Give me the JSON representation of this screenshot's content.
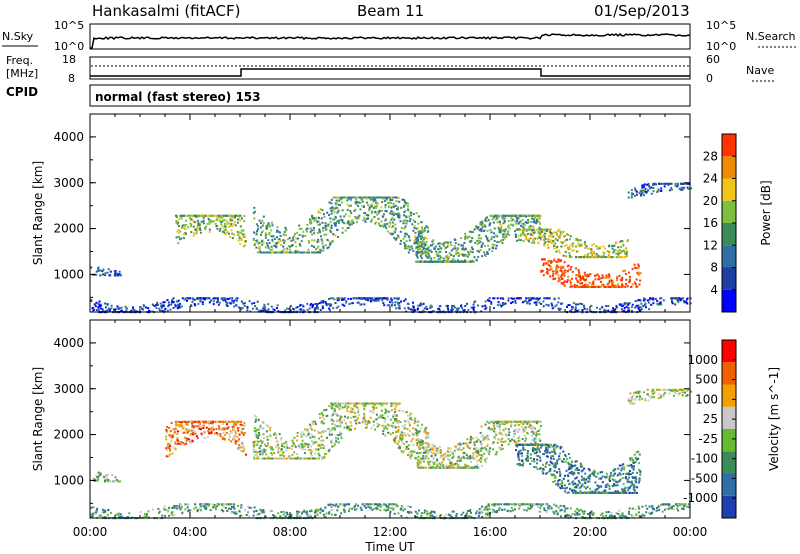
{
  "header": {
    "station": "Hankasalmi (fitACF)",
    "beam": "Beam 11",
    "date": "01/Sep/2013"
  },
  "noise_panel": {
    "left_label": "N.Sky",
    "right_label": "N.Search",
    "left_ticks": [
      "10^5",
      "10^0"
    ],
    "right_ticks": [
      "10^5",
      "10^0"
    ]
  },
  "freq_panel": {
    "left_label_1": "Freq.",
    "left_label_2": "[MHz]",
    "left_ticks": [
      "18",
      "8"
    ],
    "right_label": "Nave",
    "right_ticks": [
      "60",
      "0"
    ],
    "cpid_label": "CPID"
  },
  "cpid_text": "normal (fast stereo) 153",
  "chart_data": [
    {
      "type": "heatmap",
      "name": "power",
      "ylabel": "Slant Range [km]",
      "ylim": [
        180,
        4500
      ],
      "yticks": [
        "1000",
        "2000",
        "3000",
        "4000"
      ],
      "xlim": [
        "00:00",
        "00:00"
      ],
      "colorbar": {
        "label": "Power [dB]",
        "ticks": [
          "4",
          "8",
          "12",
          "16",
          "20",
          "24",
          "28"
        ],
        "colors": [
          "#0000ff",
          "#1e3fa0",
          "#2f6fa8",
          "#3a8c5a",
          "#7fbf3f",
          "#f0c419",
          "#f08a00",
          "#ff3300"
        ]
      },
      "scatter_bands": [
        {
          "t0": 0.0,
          "t1": 1.2,
          "r0": 1000,
          "r1": 1250,
          "level": 0.25
        },
        {
          "t0": 3.4,
          "t1": 6.2,
          "r0": 1500,
          "r1": 2300,
          "level": 0.55
        },
        {
          "t0": 6.5,
          "t1": 13.5,
          "r0": 1500,
          "r1": 2700,
          "level": 0.45
        },
        {
          "t0": 13.0,
          "t1": 18.0,
          "r0": 1300,
          "r1": 2300,
          "level": 0.45
        },
        {
          "t0": 17.0,
          "t1": 21.5,
          "r0": 1400,
          "r1": 2000,
          "level": 0.6
        },
        {
          "t0": 18.0,
          "t1": 22.0,
          "r0": 750,
          "r1": 1350,
          "level": 0.95
        },
        {
          "t0": 21.5,
          "t1": 24.0,
          "r0": 2700,
          "r1": 3000,
          "level": 0.25
        },
        {
          "t0": 0.0,
          "t1": 24.0,
          "r0": 200,
          "r1": 500,
          "level": 0.2
        }
      ]
    },
    {
      "type": "heatmap",
      "name": "velocity",
      "ylabel": "Slant Range [km]",
      "xlabel": "Time UT",
      "ylim": [
        180,
        4500
      ],
      "yticks": [
        "1000",
        "2000",
        "3000",
        "4000"
      ],
      "xticks": [
        "00:00",
        "04:00",
        "08:00",
        "12:00",
        "16:00",
        "20:00",
        "00:00"
      ],
      "colorbar": {
        "label": "Velocity [m s^-1]",
        "ticks": [
          "1000",
          "500",
          "100",
          "25",
          "-25",
          "-100",
          "-500",
          "-1000"
        ],
        "colors": [
          "#1f3fb0",
          "#2f6fa8",
          "#3a8c5a",
          "#66bb33",
          "#c8c8c8",
          "#f0a000",
          "#f06000",
          "#ff0000"
        ]
      },
      "scatter_bands": [
        {
          "t0": 0.0,
          "t1": 1.2,
          "r0": 1000,
          "r1": 1250,
          "level": 0.45
        },
        {
          "t0": 3.0,
          "t1": 6.2,
          "r0": 1500,
          "r1": 2300,
          "level": 0.75
        },
        {
          "t0": 6.5,
          "t1": 13.5,
          "r0": 1500,
          "r1": 2700,
          "level": 0.5
        },
        {
          "t0": 13.0,
          "t1": 18.0,
          "r0": 1300,
          "r1": 2300,
          "level": 0.5
        },
        {
          "t0": 17.0,
          "t1": 22.0,
          "r0": 750,
          "r1": 1800,
          "level": 0.25
        },
        {
          "t0": 21.5,
          "t1": 24.0,
          "r0": 2700,
          "r1": 3000,
          "level": 0.5
        },
        {
          "t0": 0.0,
          "t1": 24.0,
          "r0": 200,
          "r1": 500,
          "level": 0.35
        }
      ]
    }
  ]
}
